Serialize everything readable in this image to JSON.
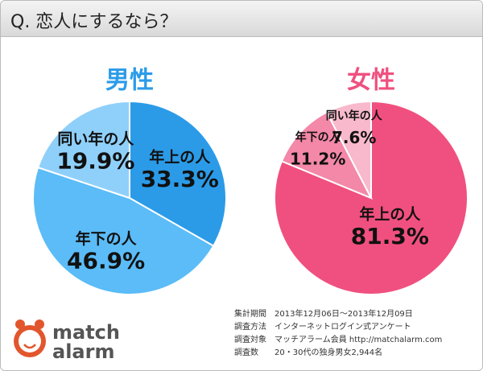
{
  "title": "Q. 恋人にするなら？",
  "chart_data": [
    {
      "type": "pie",
      "title": "男性",
      "title_color": "#2b9be8",
      "categories": [
        "年上の人",
        "年下の人",
        "同い年の人"
      ],
      "values": [
        33.3,
        46.9,
        19.9
      ],
      "value_labels": [
        "33.3%",
        "46.9%",
        "19.9%"
      ],
      "colors": [
        "#2b9be8",
        "#5bbcf7",
        "#8fd0fb"
      ]
    },
    {
      "type": "pie",
      "title": "女性",
      "title_color": "#f0507f",
      "categories": [
        "年上の人",
        "年下の人",
        "同い年の人"
      ],
      "values": [
        81.3,
        11.2,
        7.6
      ],
      "value_labels": [
        "81.3%",
        "11.2%",
        "7.6%"
      ],
      "colors": [
        "#f0507f",
        "#f388a8",
        "#f8b9cc"
      ]
    }
  ],
  "survey": {
    "rows": [
      [
        "集計期間",
        "2013年12月06日～2013年12月09日"
      ],
      [
        "調査方法",
        "インターネットログイン式アンケート"
      ],
      [
        "調査対象",
        "マッチアラーム会員  http://matchalarm.com"
      ],
      [
        "調査数",
        "20・30代の独身男女2,944名"
      ]
    ]
  },
  "logo": [
    "match",
    "alarm"
  ]
}
